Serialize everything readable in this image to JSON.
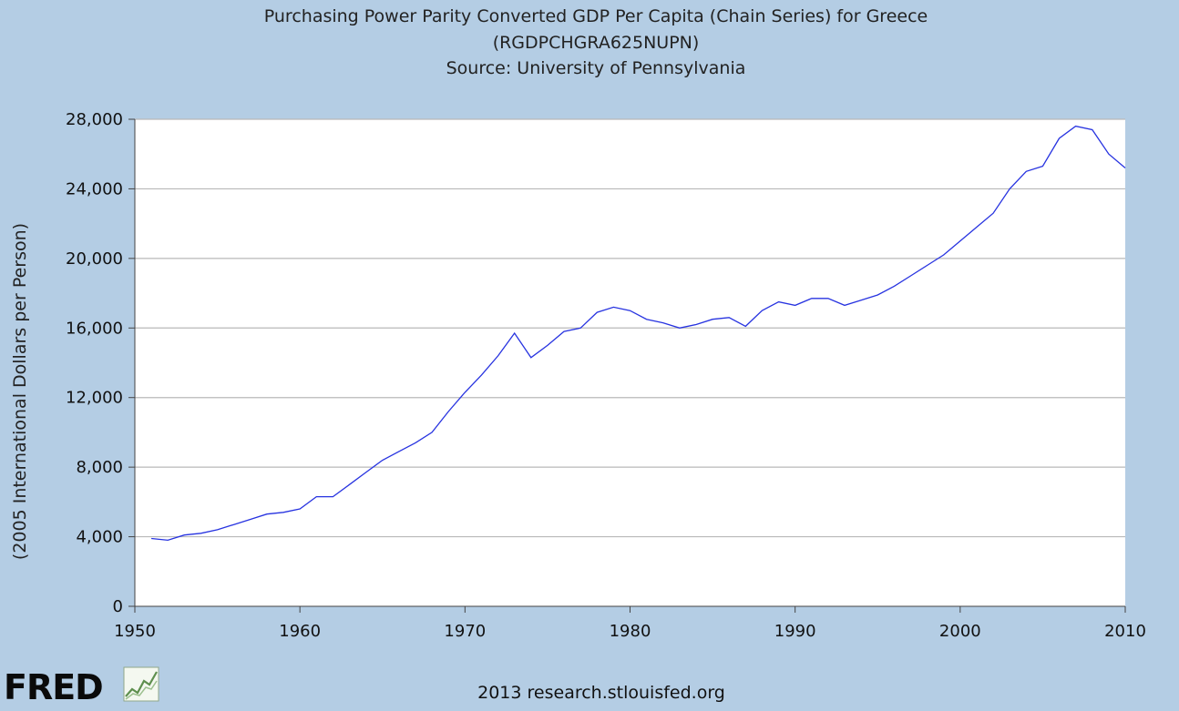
{
  "chart_data": {
    "type": "line",
    "title_lines": [
      "Purchasing Power Parity Converted GDP Per Capita (Chain Series) for Greece",
      "(RGDPCHGRA625NUPN)",
      "Source: University of Pennsylvania"
    ],
    "xlabel": "",
    "ylabel": "(2005 International Dollars per Person)",
    "xlim": [
      1950,
      2010
    ],
    "ylim": [
      0,
      28000
    ],
    "x_ticks": [
      1950,
      1960,
      1970,
      1980,
      1990,
      2000,
      2010
    ],
    "x_tick_labels": [
      "1950",
      "1960",
      "1970",
      "1980",
      "1990",
      "2000",
      "2010"
    ],
    "y_ticks": [
      0,
      4000,
      8000,
      12000,
      16000,
      20000,
      24000,
      28000
    ],
    "y_tick_labels": [
      "0",
      "4,000",
      "8,000",
      "12,000",
      "16,000",
      "20,000",
      "24,000",
      "28,000"
    ],
    "grid": true,
    "line_color": "#2733e0",
    "series": [
      {
        "x": [
          1951,
          1952,
          1953,
          1954,
          1955,
          1956,
          1957,
          1958,
          1959,
          1960,
          1961,
          1962,
          1963,
          1964,
          1965,
          1966,
          1967,
          1968,
          1969,
          1970,
          1971,
          1972,
          1973,
          1974,
          1975,
          1976,
          1977,
          1978,
          1979,
          1980,
          1981,
          1982,
          1983,
          1984,
          1985,
          1986,
          1987,
          1988,
          1989,
          1990,
          1991,
          1992,
          1993,
          1994,
          1995,
          1996,
          1997,
          1998,
          1999,
          2000,
          2001,
          2002,
          2003,
          2004,
          2005,
          2006,
          2007,
          2008,
          2009,
          2010
        ],
        "y": [
          3900,
          3800,
          4100,
          4200,
          4400,
          4700,
          5000,
          5300,
          5400,
          5600,
          6300,
          6300,
          7000,
          7700,
          8400,
          8900,
          9400,
          10000,
          11200,
          12300,
          13300,
          14400,
          15700,
          14300,
          15000,
          15800,
          16000,
          16900,
          17200,
          17000,
          16500,
          16300,
          16000,
          16200,
          16500,
          16600,
          16100,
          17000,
          17500,
          17300,
          17700,
          17700,
          17300,
          17600,
          17900,
          18400,
          19000,
          19600,
          20200,
          21000,
          21800,
          22600,
          24000,
          25000,
          25300,
          26900,
          27600,
          27400,
          26000,
          25200
        ]
      }
    ]
  },
  "footer": {
    "logo_text": "FRED",
    "source_text": "2013 research.stlouisfed.org"
  }
}
